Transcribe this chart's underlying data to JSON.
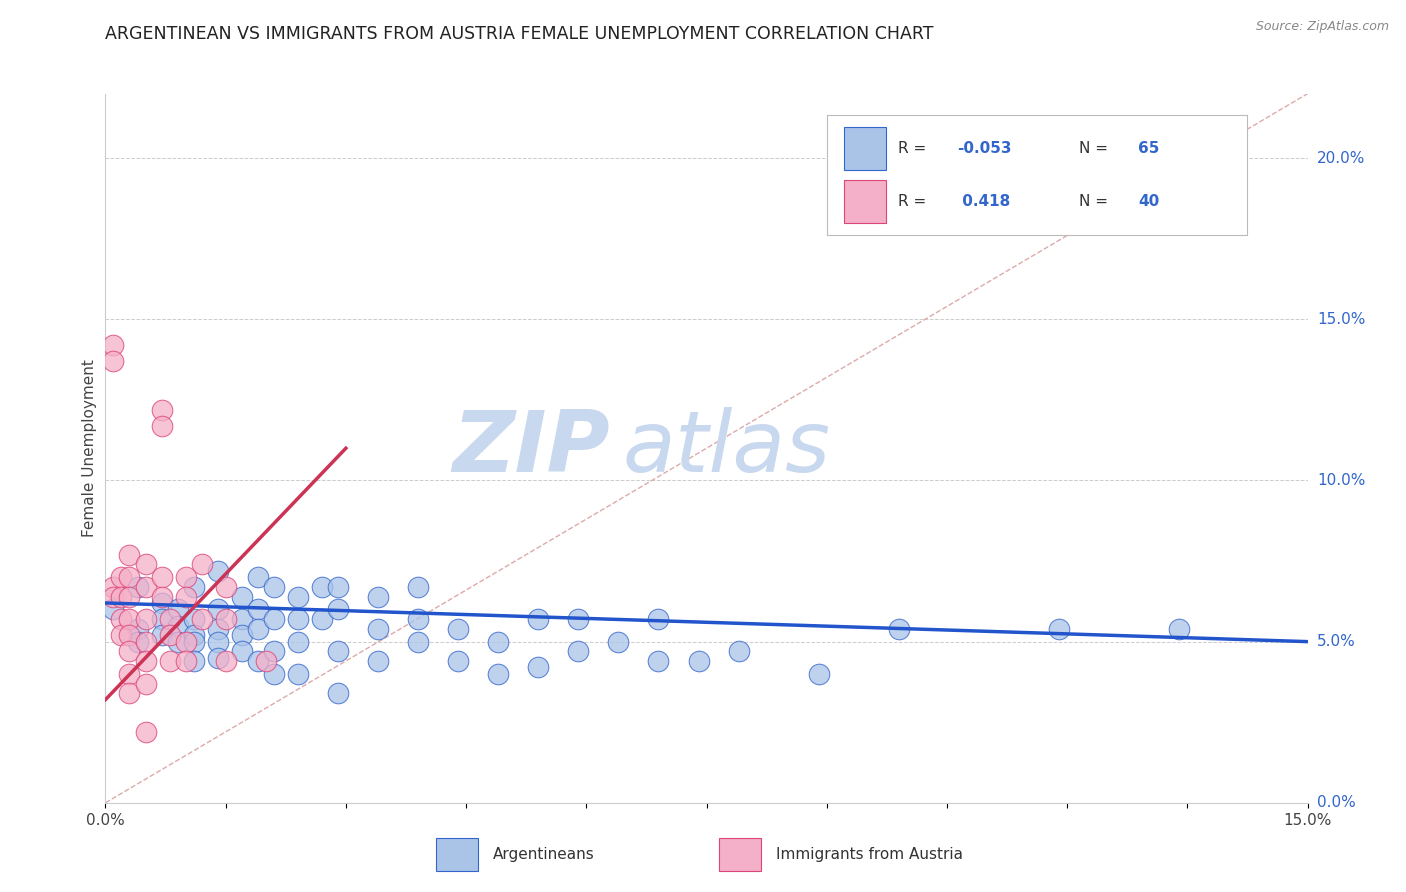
{
  "title": "ARGENTINEAN VS IMMIGRANTS FROM AUSTRIA FEMALE UNEMPLOYMENT CORRELATION CHART",
  "source": "Source: ZipAtlas.com",
  "ylabel": "Female Unemployment",
  "right_yticks": [
    0.0,
    0.05,
    0.1,
    0.15,
    0.2
  ],
  "right_yticklabels": [
    "0.0%",
    "5.0%",
    "10.0%",
    "15.0%",
    "20.0%"
  ],
  "xmin": 0.0,
  "xmax": 0.15,
  "ymin": 0.0,
  "ymax": 0.22,
  "legend_blue_r": "-0.053",
  "legend_blue_n": "65",
  "legend_pink_r": "0.418",
  "legend_pink_n": "40",
  "blue_fill": "#aac4e8",
  "pink_fill": "#f4b0c8",
  "blue_edge": "#3366cc",
  "pink_edge": "#dd4477",
  "blue_line_color": "#2255cc",
  "pink_line_color": "#cc3355",
  "diag_line_color": "#ddaaaa",
  "blue_scatter": [
    [
      0.001,
      0.06
    ],
    [
      0.004,
      0.067
    ],
    [
      0.004,
      0.054
    ],
    [
      0.004,
      0.05
    ],
    [
      0.007,
      0.062
    ],
    [
      0.007,
      0.057
    ],
    [
      0.007,
      0.052
    ],
    [
      0.009,
      0.06
    ],
    [
      0.009,
      0.055
    ],
    [
      0.009,
      0.05
    ],
    [
      0.011,
      0.067
    ],
    [
      0.011,
      0.057
    ],
    [
      0.011,
      0.052
    ],
    [
      0.011,
      0.05
    ],
    [
      0.011,
      0.044
    ],
    [
      0.014,
      0.072
    ],
    [
      0.014,
      0.06
    ],
    [
      0.014,
      0.054
    ],
    [
      0.014,
      0.05
    ],
    [
      0.014,
      0.045
    ],
    [
      0.017,
      0.064
    ],
    [
      0.017,
      0.057
    ],
    [
      0.017,
      0.052
    ],
    [
      0.017,
      0.047
    ],
    [
      0.019,
      0.07
    ],
    [
      0.019,
      0.06
    ],
    [
      0.019,
      0.054
    ],
    [
      0.019,
      0.044
    ],
    [
      0.021,
      0.067
    ],
    [
      0.021,
      0.057
    ],
    [
      0.021,
      0.047
    ],
    [
      0.021,
      0.04
    ],
    [
      0.024,
      0.064
    ],
    [
      0.024,
      0.057
    ],
    [
      0.024,
      0.05
    ],
    [
      0.024,
      0.04
    ],
    [
      0.027,
      0.067
    ],
    [
      0.027,
      0.057
    ],
    [
      0.029,
      0.067
    ],
    [
      0.029,
      0.06
    ],
    [
      0.029,
      0.047
    ],
    [
      0.029,
      0.034
    ],
    [
      0.034,
      0.064
    ],
    [
      0.034,
      0.054
    ],
    [
      0.034,
      0.044
    ],
    [
      0.039,
      0.067
    ],
    [
      0.039,
      0.057
    ],
    [
      0.039,
      0.05
    ],
    [
      0.044,
      0.054
    ],
    [
      0.044,
      0.044
    ],
    [
      0.049,
      0.05
    ],
    [
      0.049,
      0.04
    ],
    [
      0.054,
      0.057
    ],
    [
      0.054,
      0.042
    ],
    [
      0.059,
      0.057
    ],
    [
      0.059,
      0.047
    ],
    [
      0.064,
      0.05
    ],
    [
      0.069,
      0.057
    ],
    [
      0.069,
      0.044
    ],
    [
      0.074,
      0.044
    ],
    [
      0.079,
      0.047
    ],
    [
      0.089,
      0.04
    ],
    [
      0.099,
      0.054
    ],
    [
      0.119,
      0.054
    ],
    [
      0.134,
      0.054
    ]
  ],
  "pink_scatter": [
    [
      0.001,
      0.142
    ],
    [
      0.001,
      0.137
    ],
    [
      0.001,
      0.067
    ],
    [
      0.001,
      0.064
    ],
    [
      0.002,
      0.07
    ],
    [
      0.002,
      0.064
    ],
    [
      0.002,
      0.057
    ],
    [
      0.002,
      0.052
    ],
    [
      0.003,
      0.077
    ],
    [
      0.003,
      0.07
    ],
    [
      0.003,
      0.064
    ],
    [
      0.003,
      0.057
    ],
    [
      0.003,
      0.052
    ],
    [
      0.003,
      0.047
    ],
    [
      0.003,
      0.04
    ],
    [
      0.003,
      0.034
    ],
    [
      0.005,
      0.074
    ],
    [
      0.005,
      0.067
    ],
    [
      0.005,
      0.057
    ],
    [
      0.005,
      0.05
    ],
    [
      0.005,
      0.044
    ],
    [
      0.005,
      0.037
    ],
    [
      0.005,
      0.022
    ],
    [
      0.007,
      0.122
    ],
    [
      0.007,
      0.117
    ],
    [
      0.007,
      0.07
    ],
    [
      0.007,
      0.064
    ],
    [
      0.008,
      0.057
    ],
    [
      0.008,
      0.052
    ],
    [
      0.008,
      0.044
    ],
    [
      0.01,
      0.07
    ],
    [
      0.01,
      0.064
    ],
    [
      0.01,
      0.05
    ],
    [
      0.01,
      0.044
    ],
    [
      0.012,
      0.074
    ],
    [
      0.012,
      0.057
    ],
    [
      0.015,
      0.067
    ],
    [
      0.015,
      0.057
    ],
    [
      0.015,
      0.044
    ],
    [
      0.02,
      0.044
    ]
  ],
  "blue_line_x": [
    0.0,
    0.15
  ],
  "blue_line_y": [
    0.062,
    0.05
  ],
  "pink_line_x": [
    0.0,
    0.03
  ],
  "pink_line_y": [
    0.032,
    0.11
  ],
  "diag_line_x": [
    0.0,
    0.15
  ],
  "diag_line_y": [
    0.0,
    0.22
  ],
  "watermark_zip": "ZIP",
  "watermark_atlas": "atlas",
  "watermark_color_zip": "#c8d8ee",
  "watermark_color_atlas": "#c8d8ee",
  "background_color": "#ffffff",
  "grid_color": "#cccccc"
}
